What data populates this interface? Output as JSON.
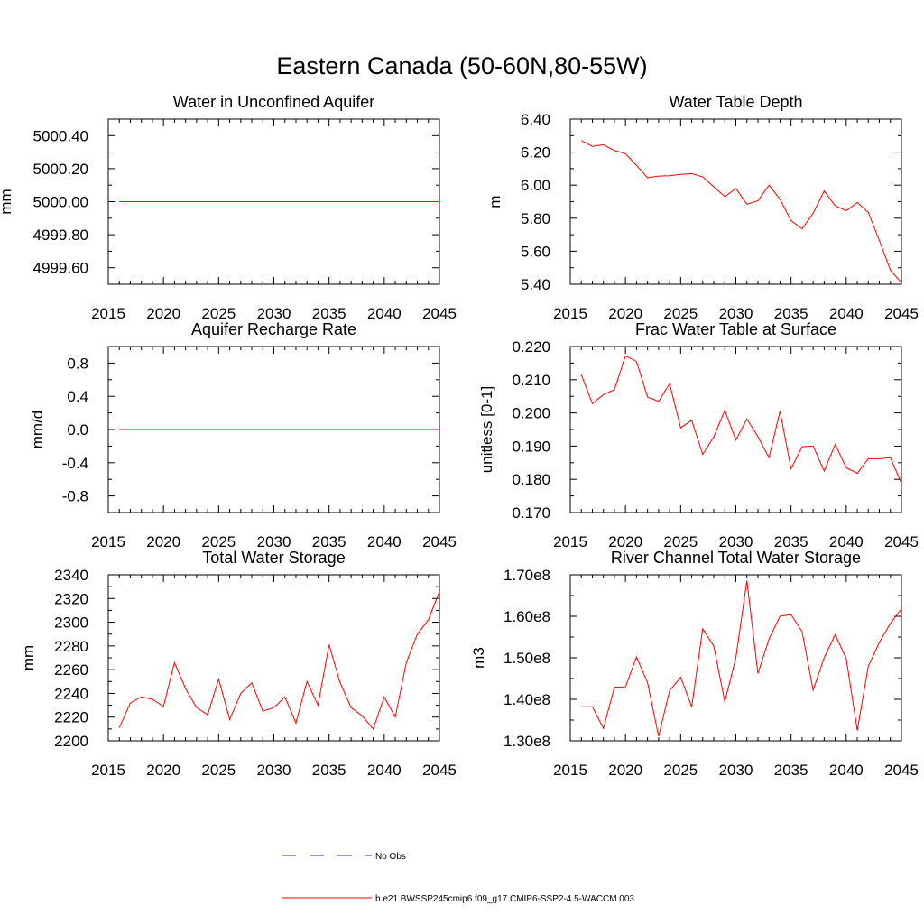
{
  "figure": {
    "title": "Eastern Canada (50-60N,80-55W)"
  },
  "legend": {
    "entries": [
      {
        "label": "No Obs",
        "color": "#2b2bb3",
        "style": "dashed"
      },
      {
        "label": "b.e21.BWSSP245cmip6.f09_g17.CMIP6-SSP2-4.5-WACCM.003",
        "color": "#ff0000",
        "style": "solid"
      }
    ]
  },
  "chart_data": [
    {
      "id": "unconfined-aquifer",
      "type": "line",
      "title": "Water in Unconfined Aquifer",
      "xlabel": "",
      "ylabel": "mm",
      "xlim": [
        2015,
        2045
      ],
      "ylim": [
        4999.5,
        5000.5
      ],
      "xticks": [
        2015,
        2020,
        2025,
        2030,
        2035,
        2040,
        2045
      ],
      "xtick_labels": [
        "2015",
        "2020",
        "2025",
        "2030",
        "2035",
        "2040",
        "2045"
      ],
      "yticks": [
        4999.6,
        4999.8,
        5000.0,
        5000.2,
        5000.4
      ],
      "ytick_labels": [
        "4999.60",
        "4999.80",
        "5000.00",
        "5000.20",
        "5000.40"
      ],
      "x": [
        2016,
        2017,
        2018,
        2019,
        2020,
        2021,
        2022,
        2023,
        2024,
        2025,
        2026,
        2027,
        2028,
        2029,
        2030,
        2031,
        2032,
        2033,
        2034,
        2035,
        2036,
        2037,
        2038,
        2039,
        2040,
        2041,
        2042,
        2043,
        2044,
        2045
      ],
      "values": [
        5000,
        5000,
        5000,
        5000,
        5000,
        5000,
        5000,
        5000,
        5000,
        5000,
        5000,
        5000,
        5000,
        5000,
        5000,
        5000,
        5000,
        5000,
        5000,
        5000,
        5000,
        5000,
        5000,
        5000,
        5000,
        5000,
        5000,
        5000,
        5000,
        5000
      ]
    },
    {
      "id": "water-table-depth",
      "type": "line",
      "title": "Water Table Depth",
      "xlabel": "",
      "ylabel": "m",
      "xlim": [
        2015,
        2045
      ],
      "ylim": [
        5.4,
        6.4
      ],
      "xticks": [
        2015,
        2020,
        2025,
        2030,
        2035,
        2040,
        2045
      ],
      "xtick_labels": [
        "2015",
        "2020",
        "2025",
        "2030",
        "2035",
        "2040",
        "2045"
      ],
      "yticks": [
        5.4,
        5.6,
        5.8,
        6.0,
        6.2,
        6.4
      ],
      "ytick_labels": [
        "5.40",
        "5.60",
        "5.80",
        "6.00",
        "6.20",
        "6.40"
      ],
      "x": [
        2016,
        2017,
        2018,
        2019,
        2020,
        2021,
        2022,
        2023,
        2024,
        2025,
        2026,
        2027,
        2028,
        2029,
        2030,
        2031,
        2032,
        2033,
        2034,
        2035,
        2036,
        2037,
        2038,
        2039,
        2040,
        2041,
        2042,
        2043,
        2044,
        2045
      ],
      "values": [
        6.27,
        6.235,
        6.245,
        6.21,
        6.19,
        6.12,
        6.045,
        6.055,
        6.057,
        6.065,
        6.07,
        6.05,
        5.99,
        5.93,
        5.98,
        5.885,
        5.905,
        6.0,
        5.915,
        5.785,
        5.735,
        5.83,
        5.965,
        5.875,
        5.845,
        5.895,
        5.835,
        5.665,
        5.485,
        5.41
      ]
    },
    {
      "id": "recharge-rate",
      "type": "line",
      "title": "Aquifer Recharge Rate",
      "xlabel": "",
      "ylabel": "mm/d",
      "xlim": [
        2015,
        2045
      ],
      "ylim": [
        -1.0,
        1.0
      ],
      "xticks": [
        2015,
        2020,
        2025,
        2030,
        2035,
        2040,
        2045
      ],
      "xtick_labels": [
        "2015",
        "2020",
        "2025",
        "2030",
        "2035",
        "2040",
        "2045"
      ],
      "yticks": [
        -0.8,
        -0.4,
        0.0,
        0.4,
        0.8
      ],
      "ytick_labels": [
        "-0.8",
        "-0.4",
        "0.0",
        "0.4",
        "0.8"
      ],
      "x": [
        2016,
        2017,
        2018,
        2019,
        2020,
        2021,
        2022,
        2023,
        2024,
        2025,
        2026,
        2027,
        2028,
        2029,
        2030,
        2031,
        2032,
        2033,
        2034,
        2035,
        2036,
        2037,
        2038,
        2039,
        2040,
        2041,
        2042,
        2043,
        2044,
        2045
      ],
      "values": [
        0,
        0,
        0,
        0,
        0,
        0,
        0,
        0,
        0,
        0,
        0,
        0,
        0,
        0,
        0,
        0,
        0,
        0,
        0,
        0,
        0,
        0,
        0,
        0,
        0,
        0,
        0,
        0,
        0,
        0
      ]
    },
    {
      "id": "frac-water-table",
      "type": "line",
      "title": "Frac Water Table at Surface",
      "xlabel": "",
      "ylabel": "unitless [0-1]",
      "xlim": [
        2015,
        2045
      ],
      "ylim": [
        0.17,
        0.22
      ],
      "xticks": [
        2015,
        2020,
        2025,
        2030,
        2035,
        2040,
        2045
      ],
      "xtick_labels": [
        "2015",
        "2020",
        "2025",
        "2030",
        "2035",
        "2040",
        "2045"
      ],
      "yticks": [
        0.17,
        0.18,
        0.19,
        0.2,
        0.21,
        0.22
      ],
      "ytick_labels": [
        "0.170",
        "0.180",
        "0.190",
        "0.200",
        "0.210",
        "0.220"
      ],
      "x": [
        2016,
        2017,
        2018,
        2019,
        2020,
        2021,
        2022,
        2023,
        2024,
        2025,
        2026,
        2027,
        2028,
        2029,
        2030,
        2031,
        2032,
        2033,
        2034,
        2035,
        2036,
        2037,
        2038,
        2039,
        2040,
        2041,
        2042,
        2043,
        2044,
        2045
      ],
      "values": [
        0.2115,
        0.2028,
        0.2055,
        0.207,
        0.2172,
        0.2155,
        0.2048,
        0.2035,
        0.2088,
        0.1955,
        0.1978,
        0.1875,
        0.1928,
        0.2008,
        0.1918,
        0.1982,
        0.1928,
        0.1865,
        0.2005,
        0.1832,
        0.1898,
        0.19,
        0.1825,
        0.1905,
        0.1835,
        0.1818,
        0.1862,
        0.1862,
        0.1865,
        0.1788
      ]
    },
    {
      "id": "total-water-storage",
      "type": "line",
      "title": "Total Water Storage",
      "xlabel": "",
      "ylabel": "mm",
      "xlim": [
        2015,
        2045
      ],
      "ylim": [
        2200,
        2340
      ],
      "xticks": [
        2015,
        2020,
        2025,
        2030,
        2035,
        2040,
        2045
      ],
      "xtick_labels": [
        "2015",
        "2020",
        "2025",
        "2030",
        "2035",
        "2040",
        "2045"
      ],
      "yticks": [
        2200,
        2220,
        2240,
        2260,
        2280,
        2300,
        2320,
        2340
      ],
      "ytick_labels": [
        "2200",
        "2220",
        "2240",
        "2260",
        "2280",
        "2300",
        "2320",
        "2340"
      ],
      "x": [
        2016,
        2017,
        2018,
        2019,
        2020,
        2021,
        2022,
        2023,
        2024,
        2025,
        2026,
        2027,
        2028,
        2029,
        2030,
        2031,
        2032,
        2033,
        2034,
        2035,
        2036,
        2037,
        2038,
        2039,
        2040,
        2041,
        2042,
        2043,
        2044,
        2045
      ],
      "values": [
        2211,
        2232,
        2237,
        2235,
        2229,
        2266,
        2244,
        2228,
        2222,
        2252,
        2218,
        2240,
        2249,
        2225,
        2228,
        2237,
        2215,
        2250,
        2230,
        2281,
        2249,
        2228,
        2221,
        2210,
        2237,
        2220,
        2266,
        2290,
        2302,
        2326
      ]
    },
    {
      "id": "river-channel-storage",
      "type": "line",
      "title": "River Channel Total Water Storage",
      "xlabel": "",
      "ylabel": "m3",
      "xlim": [
        2015,
        2045
      ],
      "ylim": [
        130000000,
        170000000
      ],
      "xticks": [
        2015,
        2020,
        2025,
        2030,
        2035,
        2040,
        2045
      ],
      "xtick_labels": [
        "2015",
        "2020",
        "2025",
        "2030",
        "2035",
        "2040",
        "2045"
      ],
      "yticks": [
        130000000,
        140000000,
        150000000,
        160000000,
        170000000
      ],
      "ytick_labels": [
        "1.30e8",
        "1.40e8",
        "1.50e8",
        "1.60e8",
        "1.70e8"
      ],
      "x": [
        2016,
        2017,
        2018,
        2019,
        2020,
        2021,
        2022,
        2023,
        2024,
        2025,
        2026,
        2027,
        2028,
        2029,
        2030,
        2031,
        2032,
        2033,
        2034,
        2035,
        2036,
        2037,
        2038,
        2039,
        2040,
        2041,
        2042,
        2043,
        2044,
        2045
      ],
      "values": [
        138200000,
        138200000,
        133000000,
        142900000,
        143000000,
        150200000,
        144000000,
        131100000,
        142100000,
        145300000,
        138200000,
        157000000,
        152800000,
        139400000,
        150000000,
        168600000,
        146200000,
        154500000,
        160000000,
        160400000,
        156300000,
        142200000,
        150000000,
        155600000,
        149800000,
        132500000,
        148000000,
        153700000,
        158300000,
        161800000
      ]
    }
  ]
}
